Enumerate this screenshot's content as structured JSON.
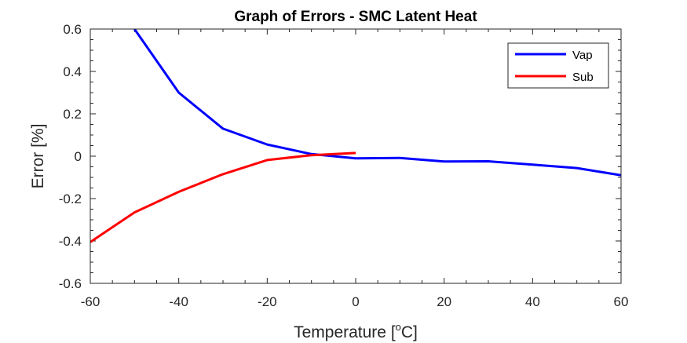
{
  "chart_data": {
    "type": "line",
    "title": "Graph of Errors - SMC Latent Heat",
    "xlabel": "Temperature [",
    "xlabel_sup": "o",
    "xlabel_unit": "C]",
    "ylabel": "Error [%]",
    "xlim": [
      -60,
      60
    ],
    "ylim": [
      -0.6,
      0.6
    ],
    "x_ticks": [
      -60,
      -40,
      -20,
      0,
      20,
      40,
      60
    ],
    "y_ticks": [
      -0.6,
      -0.4,
      -0.2,
      0,
      0.2,
      0.4,
      0.6
    ],
    "x_tick_labels": [
      "-60",
      "-40",
      "-20",
      "0",
      "20",
      "40",
      "60"
    ],
    "y_tick_labels": [
      "-0.6",
      "-0.4",
      "-0.2",
      "0",
      "0.2",
      "0.4",
      "0.6"
    ],
    "grid": false,
    "legend_position": "top-right",
    "series": [
      {
        "name": "Vap",
        "color": "#0000ff",
        "x": [
          -50,
          -40,
          -30,
          -20,
          -10,
          0,
          10,
          20,
          30,
          40,
          50,
          60
        ],
        "y": [
          0.6,
          0.3,
          0.13,
          0.055,
          0.01,
          -0.01,
          -0.008,
          -0.025,
          -0.024,
          -0.04,
          -0.056,
          -0.09
        ]
      },
      {
        "name": "Sub",
        "color": "#ff0000",
        "x": [
          -60,
          -50,
          -40,
          -30,
          -20,
          -10,
          0
        ],
        "y": [
          -0.405,
          -0.265,
          -0.168,
          -0.085,
          -0.018,
          0.005,
          0.015
        ]
      }
    ]
  }
}
